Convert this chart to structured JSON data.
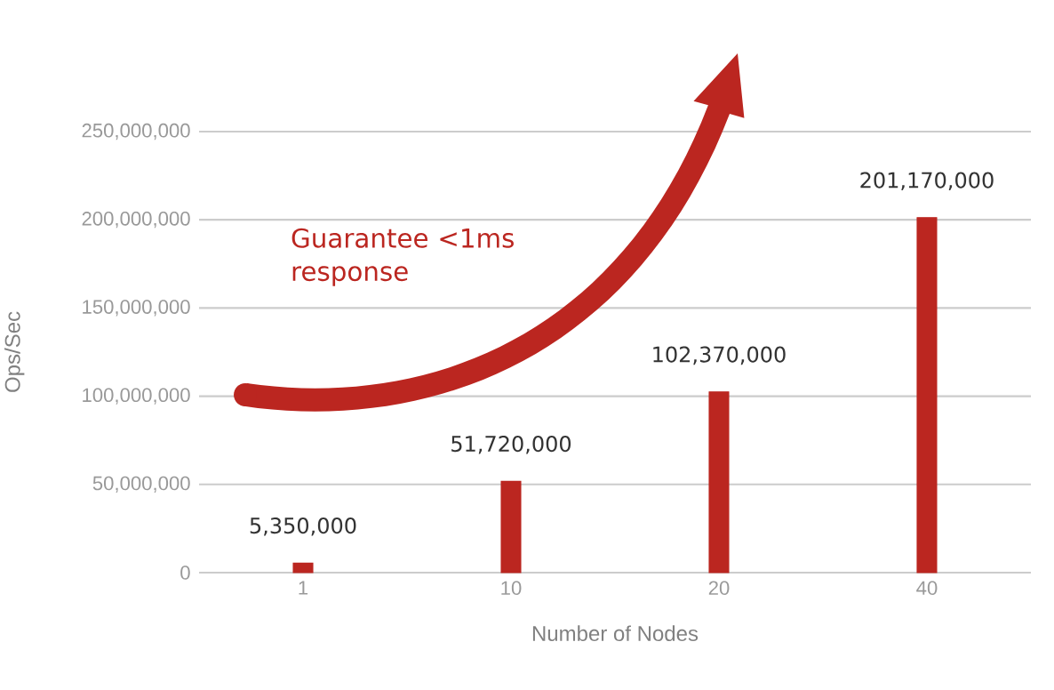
{
  "chart_data": {
    "type": "bar",
    "xlabel": "Number of Nodes",
    "ylabel": "Ops/Sec",
    "categories": [
      "1",
      "10",
      "20",
      "40"
    ],
    "values": [
      5350000,
      51720000,
      102370000,
      201170000
    ],
    "value_labels": [
      "5,350,000",
      "51,720,000",
      "102,370,000",
      "201,170,000"
    ],
    "color": "#bb2620",
    "ylim": [
      0,
      250000000
    ],
    "yticks": [
      {
        "value": 0,
        "label": "0"
      },
      {
        "value": 50000000,
        "label": "50,000,000"
      },
      {
        "value": 100000000,
        "label": "100,000,000"
      },
      {
        "value": 150000000,
        "label": "150,000,000"
      },
      {
        "value": 200000000,
        "label": "200,000,000"
      },
      {
        "value": 250000000,
        "label": "250,000,000"
      }
    ],
    "grid": "y",
    "annotations": [
      "Guarantee <1ms response"
    ]
  }
}
